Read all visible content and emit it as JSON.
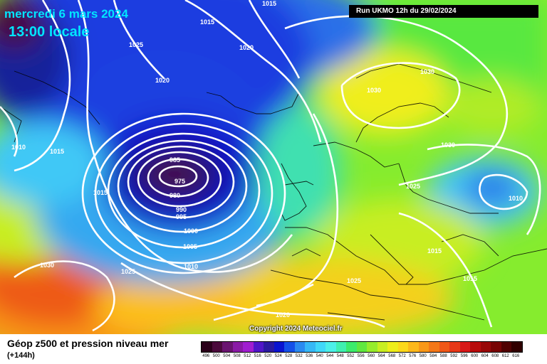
{
  "header": {
    "date": "mercredi 6 mars 2024",
    "time": "13:00 locale",
    "run": "Run UKMO 12h du 29/02/2024"
  },
  "copyright": "Copyright 2024 Meteociel.fr",
  "footer": {
    "title": "Géop z500 et pression niveau mer",
    "subtitle": "(+144h)"
  },
  "legend": {
    "labels": [
      "496",
      "500",
      "504",
      "508",
      "512",
      "516",
      "520",
      "524",
      "528",
      "532",
      "536",
      "540",
      "544",
      "548",
      "552",
      "556",
      "560",
      "564",
      "568",
      "572",
      "576",
      "580",
      "584",
      "588",
      "592",
      "596",
      "600",
      "604",
      "608",
      "612",
      "616"
    ],
    "colors": [
      "#2a001a",
      "#4b0a3c",
      "#6a1470",
      "#8a1aa6",
      "#a01ed0",
      "#5016c8",
      "#2a1aa0",
      "#0a14d0",
      "#1450e8",
      "#2a8af0",
      "#36b8f6",
      "#40d8f8",
      "#4cf0e8",
      "#40f0b0",
      "#3cec6c",
      "#60e840",
      "#96ec2c",
      "#c8ee22",
      "#eeee1a",
      "#fcd81a",
      "#fcb81a",
      "#f89818",
      "#f47818",
      "#f05818",
      "#e83818",
      "#d81818",
      "#b80c0c",
      "#980808",
      "#780404",
      "#500202",
      "#300000"
    ]
  },
  "isobars": [
    {
      "value": "1015",
      "text": "1015"
    },
    {
      "value": "1015",
      "text": "1015"
    },
    {
      "value": "1025",
      "text": "1025"
    },
    {
      "value": "1020",
      "text": "1020"
    },
    {
      "value": "1020",
      "text": "1020"
    },
    {
      "value": "1010",
      "text": "1010"
    },
    {
      "value": "1015",
      "text": "1015"
    },
    {
      "value": "1015",
      "text": "1015"
    },
    {
      "value": "985",
      "text": "985"
    },
    {
      "value": "975",
      "text": "975"
    },
    {
      "value": "980",
      "text": "980"
    },
    {
      "value": "990",
      "text": "990"
    },
    {
      "value": "995",
      "text": "995"
    },
    {
      "value": "1000",
      "text": "1000"
    },
    {
      "value": "1005",
      "text": "1005"
    },
    {
      "value": "1010",
      "text": "1010"
    },
    {
      "value": "1030",
      "text": "1030"
    },
    {
      "value": "1025",
      "text": "1025"
    },
    {
      "value": "1020",
      "text": "1020"
    },
    {
      "value": "1030",
      "text": "1030"
    },
    {
      "value": "1030",
      "text": "1030"
    },
    {
      "value": "1030",
      "text": "1030"
    },
    {
      "value": "1025",
      "text": "1025"
    },
    {
      "value": "1010",
      "text": "1010"
    },
    {
      "value": "1015",
      "text": "1015"
    },
    {
      "value": "1015",
      "text": "1015"
    },
    {
      "value": "1025",
      "text": "1025"
    }
  ]
}
